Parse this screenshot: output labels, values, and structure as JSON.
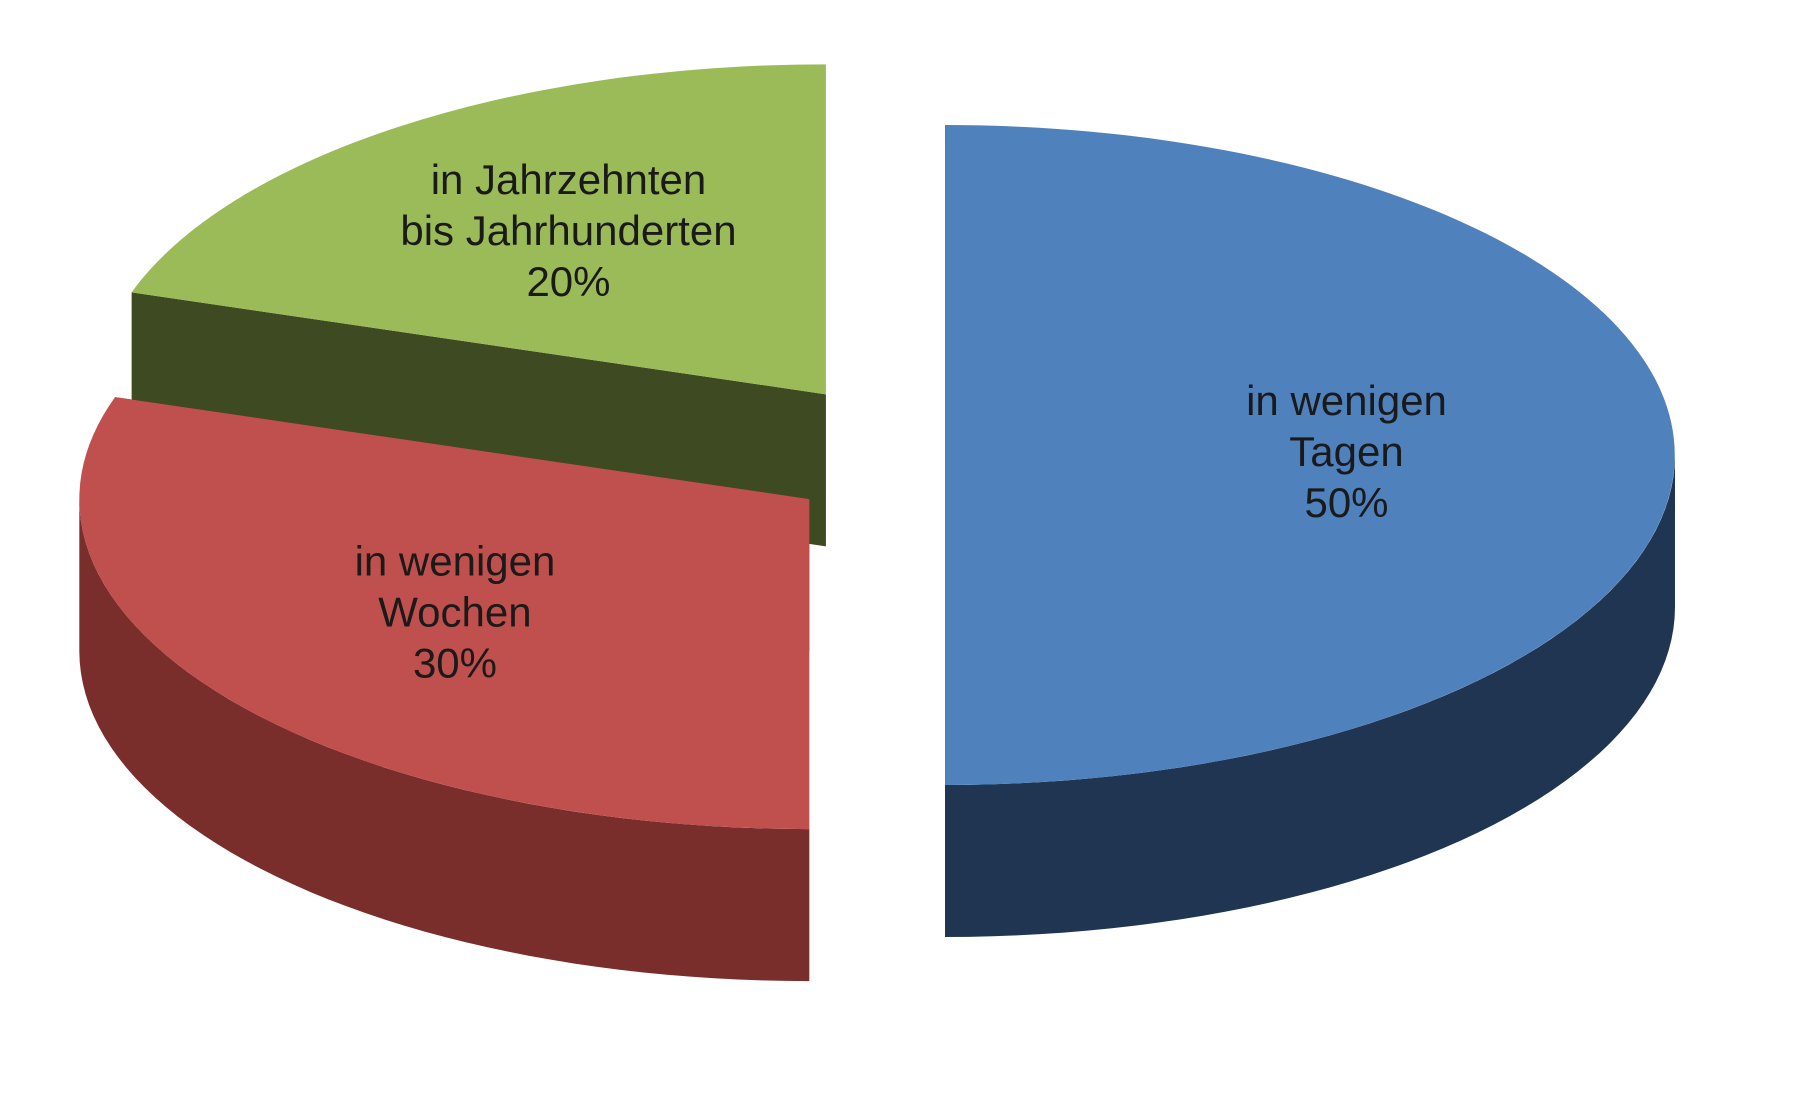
{
  "chart_data": {
    "type": "pie",
    "style": "3d-exploded",
    "slices": [
      {
        "name": "in wenigen Tagen",
        "label_lines": [
          "in wenigen",
          "Tagen"
        ],
        "value": 50,
        "value_label": "50%",
        "color": "#4F81BD",
        "side_color": "#1F3552"
      },
      {
        "name": "in wenigen Wochen",
        "label_lines": [
          "in wenigen",
          "Wochen"
        ],
        "value": 30,
        "value_label": "30%",
        "color": "#C0504D",
        "side_color": "#7A2E2C"
      },
      {
        "name": "in Jahrzehnten bis Jahrhunderten",
        "label_lines": [
          "in Jahrzehnten",
          "bis Jahrhunderten"
        ],
        "value": 20,
        "value_label": "20%",
        "color": "#9BBB59",
        "side_color": "#3D4A22"
      }
    ]
  }
}
